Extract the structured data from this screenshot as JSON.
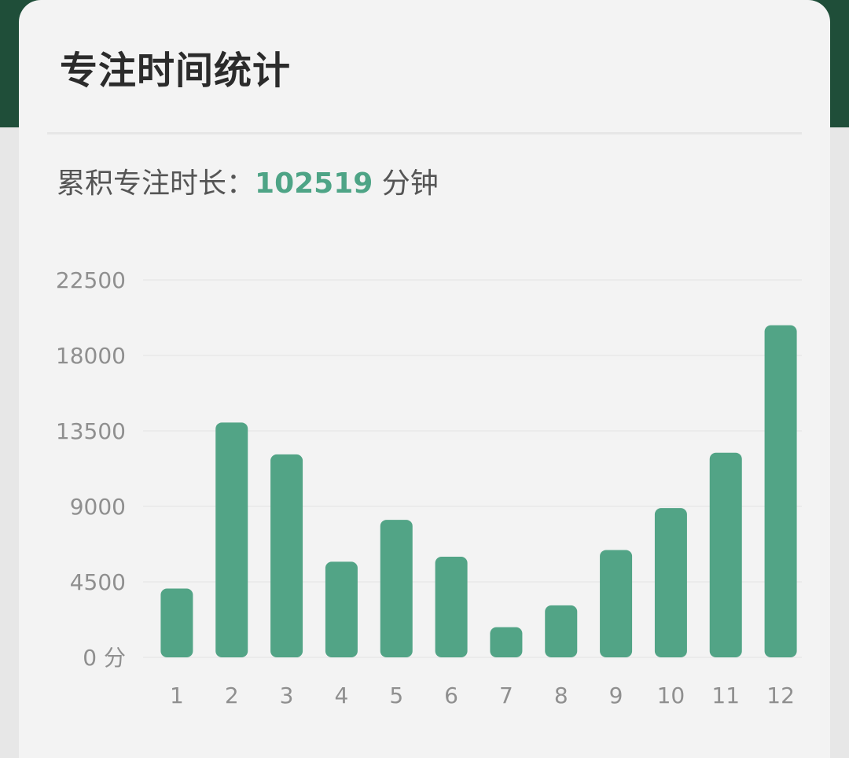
{
  "card": {
    "title": "专注时间统计",
    "summary_prefix": "累积专注时长：",
    "summary_value": "102519",
    "summary_unit": "分钟"
  },
  "colors": {
    "bar": "#52a486",
    "header_band": "#1f4e39",
    "accent_text": "#4ea486"
  },
  "chart_data": {
    "type": "bar",
    "categories": [
      "1",
      "2",
      "3",
      "4",
      "5",
      "6",
      "7",
      "8",
      "9",
      "10",
      "11",
      "12"
    ],
    "values": [
      4100,
      14000,
      12100,
      5700,
      8200,
      6000,
      1800,
      3100,
      6400,
      8900,
      12200,
      19800
    ],
    "yticks": [
      0,
      4500,
      9000,
      13500,
      18000,
      22500
    ],
    "ytick_labels": [
      "0 分",
      "4500",
      "9000",
      "13500",
      "18000",
      "22500"
    ],
    "ylim": [
      0,
      22500
    ],
    "grid": true,
    "title": "",
    "xlabel": "",
    "ylabel": ""
  }
}
